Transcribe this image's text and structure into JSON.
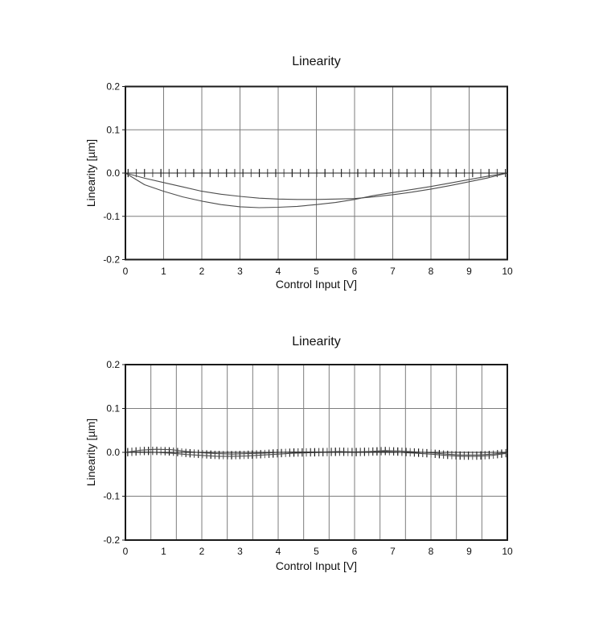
{
  "chart_data": [
    {
      "type": "line",
      "title": "Linearity",
      "xlabel": "Control Input [V]",
      "ylabel": "Linearity [µm]",
      "xlim": [
        0,
        10
      ],
      "ylim": [
        -0.2,
        0.2
      ],
      "x_tick_values": [
        0,
        1,
        2,
        3,
        4,
        5,
        6,
        7,
        8,
        9,
        10
      ],
      "x_tick_labels": [
        "0",
        "1",
        "2",
        "3",
        "4",
        "5",
        "6",
        "7",
        "8",
        "9",
        "10"
      ],
      "y_tick_values": [
        0.2,
        0.1,
        0,
        -0.1,
        -0.2
      ],
      "y_tick_labels": [
        "0.2",
        "0.1",
        "0.0",
        "-0.1",
        "-0.2"
      ],
      "x_grid_divisions": 10,
      "grid": true,
      "legend": null,
      "colors": {
        "border": "#1a1a1a",
        "grid": "#7d7d7d",
        "curve": "#4d4d4d",
        "zero_line": "#222222"
      },
      "series": [
        {
          "name": "open-loop-ascending",
          "color": "#4d4d4d",
          "width": 1.1,
          "x": [
            0,
            0.5,
            1,
            1.5,
            2,
            2.5,
            3,
            3.5,
            4,
            4.5,
            5,
            5.5,
            6,
            6.5,
            7,
            7.5,
            8,
            8.5,
            9,
            9.5,
            10
          ],
          "y": [
            0,
            -0.027,
            -0.042,
            -0.055,
            -0.065,
            -0.073,
            -0.078,
            -0.08,
            -0.079,
            -0.077,
            -0.073,
            -0.068,
            -0.061,
            -0.052,
            -0.045,
            -0.038,
            -0.031,
            -0.023,
            -0.015,
            -0.007,
            0
          ]
        },
        {
          "name": "open-loop-descending",
          "color": "#4d4d4d",
          "width": 1.1,
          "x": [
            0,
            0.5,
            1,
            1.5,
            2,
            2.5,
            3,
            3.5,
            4,
            4.5,
            5,
            5.5,
            6,
            6.5,
            7,
            7.5,
            8,
            8.5,
            9,
            9.5,
            10
          ],
          "y": [
            0,
            -0.012,
            -0.022,
            -0.032,
            -0.042,
            -0.049,
            -0.054,
            -0.058,
            -0.06,
            -0.061,
            -0.061,
            -0.06,
            -0.059,
            -0.055,
            -0.05,
            -0.044,
            -0.037,
            -0.029,
            -0.02,
            -0.011,
            0
          ]
        },
        {
          "name": "zero-reference-line",
          "color": "#222222",
          "width": 1,
          "x": [
            0,
            10
          ],
          "y": [
            0,
            0
          ]
        }
      ],
      "markers": {
        "style": "vertical-dash",
        "baseline": "zero",
        "x_start": 0.07,
        "x_end": 9.95,
        "count": 47,
        "half_height": 0.0095,
        "colors": [
          "#1f1f1f",
          "#5a5a5a",
          "#303030",
          "#6a6a6a"
        ]
      }
    },
    {
      "type": "line",
      "title": "Linearity",
      "xlabel": "Control Input [V]",
      "ylabel": "Linearity [µm]",
      "xlim": [
        0,
        10
      ],
      "ylim": [
        -0.2,
        0.2
      ],
      "x_tick_values": [
        0,
        1,
        2,
        3,
        4,
        5,
        6,
        7,
        8,
        9,
        10
      ],
      "x_tick_labels": [
        "0",
        "1",
        "2",
        "3",
        "4",
        "5",
        "6",
        "7",
        "8",
        "9",
        "10"
      ],
      "y_tick_values": [
        0.2,
        0.1,
        0,
        -0.1,
        -0.2
      ],
      "y_tick_labels": [
        "0.2",
        "0.1",
        "0.0",
        "-0.1",
        "-0.2"
      ],
      "x_grid_divisions": 15,
      "grid": true,
      "legend": null,
      "colors": {
        "border": "#1a1a1a",
        "grid": "#7d7d7d",
        "curve": "#4d4d4d",
        "zero_line": "#222222"
      },
      "series": [
        {
          "name": "closed-loop-ascending",
          "color": "#4d4d4d",
          "width": 1.1,
          "x": [
            0,
            0.4,
            0.8,
            1.2,
            1.6,
            2,
            2.4,
            2.8,
            3.2,
            3.6,
            4,
            4.4,
            4.8,
            5.2,
            5.6,
            6,
            6.4,
            6.8,
            7.2,
            7.6,
            8,
            8.4,
            8.8,
            9.2,
            9.6,
            10
          ],
          "y": [
            0,
            0.005,
            0.007,
            0.006,
            0.002,
            -0.001,
            -0.003,
            -0.004,
            -0.003,
            -0.002,
            0,
            0.001,
            0.001,
            0.001,
            0.002,
            0.001,
            0.002,
            0.004,
            0.003,
            0.001,
            -0.001,
            -0.004,
            -0.006,
            -0.006,
            -0.004,
            -0.001
          ]
        },
        {
          "name": "closed-loop-descending",
          "color": "#4d4d4d",
          "width": 1.1,
          "x": [
            0,
            0.4,
            0.8,
            1.2,
            1.6,
            2,
            2.4,
            2.8,
            3.2,
            3.6,
            4,
            4.4,
            4.8,
            5.2,
            5.6,
            6,
            6.4,
            6.8,
            7.2,
            7.6,
            8,
            8.4,
            8.8,
            9.2,
            9.6,
            10
          ],
          "y": [
            0,
            0.001,
            0,
            -0.002,
            -0.005,
            -0.007,
            -0.009,
            -0.009,
            -0.008,
            -0.006,
            -0.004,
            -0.002,
            -0.001,
            0,
            0.001,
            0,
            0.001,
            0.002,
            0,
            -0.002,
            -0.004,
            -0.007,
            -0.009,
            -0.009,
            -0.007,
            -0.002
          ]
        },
        {
          "name": "zero-reference-line",
          "color": "#222222",
          "width": 1,
          "x": [
            0,
            10
          ],
          "y": [
            0,
            0
          ]
        }
      ],
      "markers": {
        "style": "vertical-dash",
        "baseline": "series-mid",
        "x_start": 0.06,
        "x_end": 9.96,
        "count": 92,
        "half_height": 0.0095,
        "colors": [
          "#161616",
          "#4f4f4f",
          "#262626",
          "#6e6e6e",
          "#333333"
        ]
      }
    }
  ]
}
